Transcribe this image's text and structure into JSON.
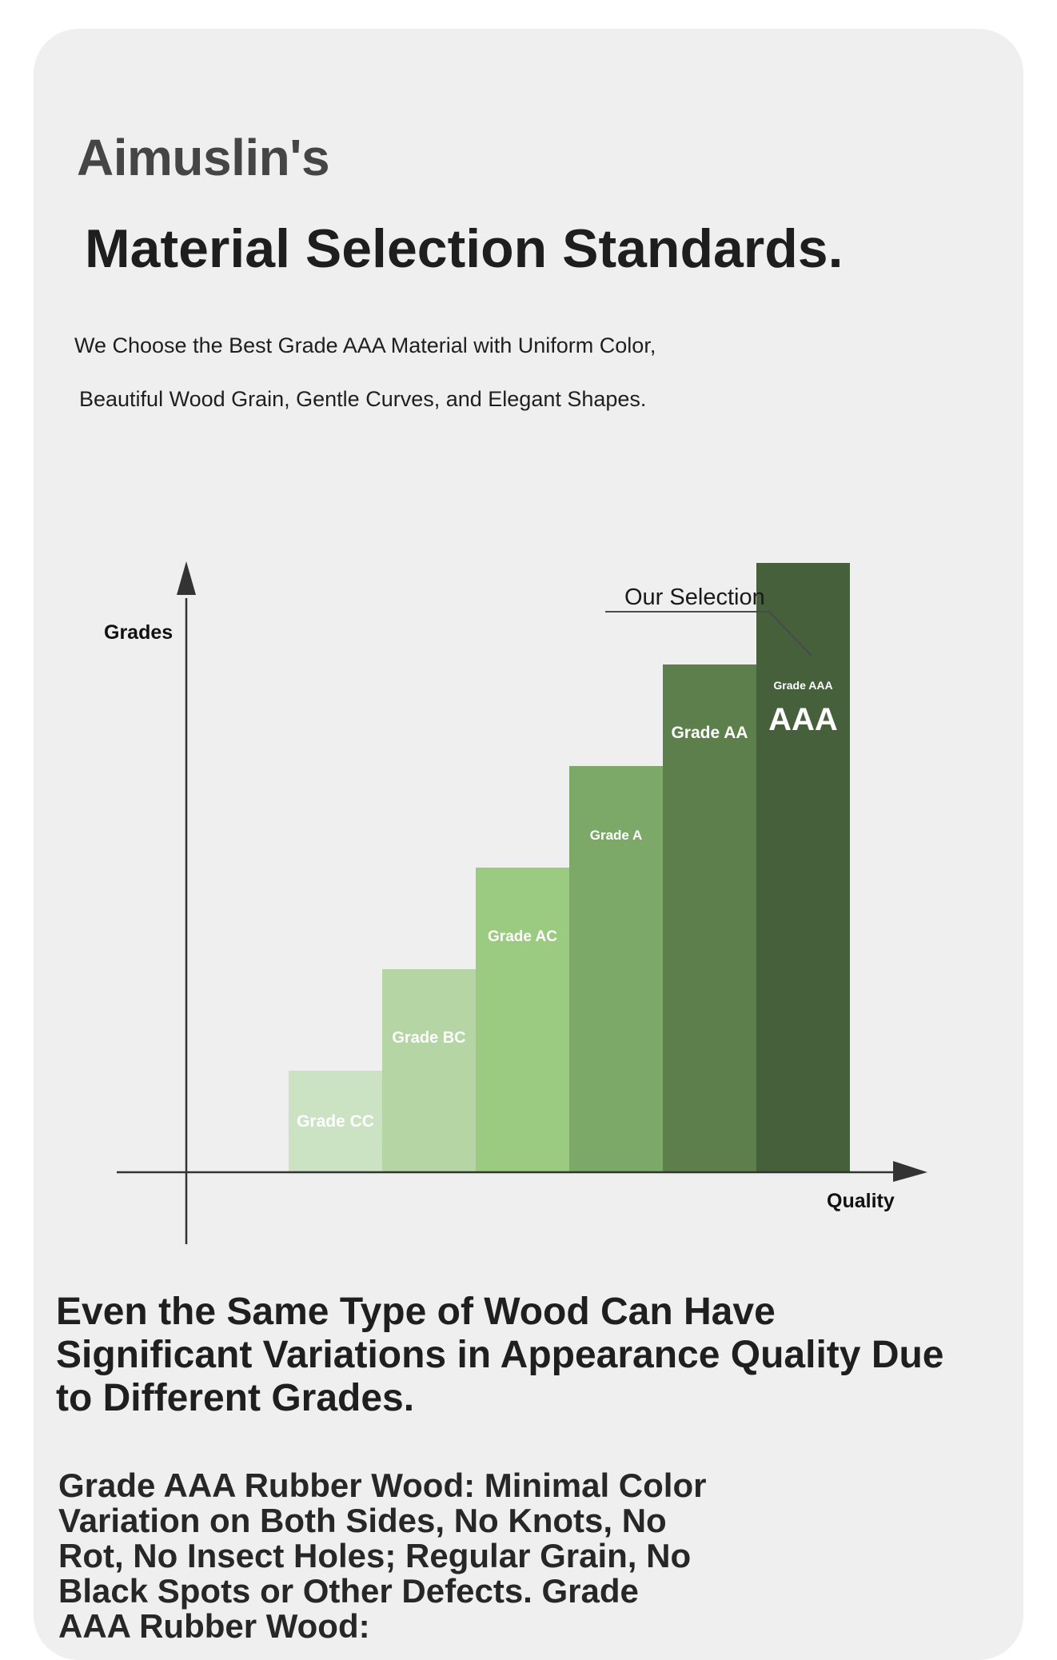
{
  "header": {
    "brand": "Aimuslin's",
    "title": "Material Selection Standards.",
    "subtitle_line1": "We Choose the Best Grade AAA Material with Uniform Color,",
    "subtitle_line2": "Beautiful Wood Grain, Gentle Curves, and Elegant Shapes."
  },
  "chart_data": {
    "type": "bar",
    "ylabel": "Grades",
    "xlabel": "Quality",
    "categories": [
      "Grade CC",
      "Grade BC",
      "Grade AC",
      "Grade A",
      "Grade AA",
      "Grade AAA"
    ],
    "values": [
      1,
      2,
      3,
      4,
      5,
      6
    ],
    "colors": [
      "#cbe2c3",
      "#b5d5a4",
      "#9acb80",
      "#7ca868",
      "#5d7f4c",
      "#46603c"
    ],
    "highlight": {
      "category": "Grade AAA",
      "badge": "AAA",
      "callout": "Our Selection"
    },
    "grid": false
  },
  "body": {
    "paragraph1": "Even the Same Type of Wood Can Have Significant Variations in Appearance Quality Due to Different Grades.",
    "paragraph2": "Grade AAA Rubber Wood: Minimal Color Variation on Both Sides, No Knots, No Rot, No Insect Holes; Regular Grain, No Black Spots or Other Defects. Grade AAA Rubber Wood:"
  }
}
